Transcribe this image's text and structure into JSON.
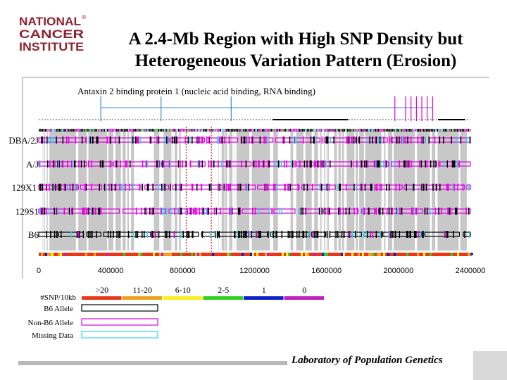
{
  "header": {
    "logo_lines": [
      "NATIONAL",
      "CANCER",
      "INSTITUTE"
    ],
    "logo_mark": "®",
    "title_line1": "A 2.4-Mb Region with High SNP Density but",
    "title_line2": "Heterogeneous Variation Pattern (Erosion)"
  },
  "gene_annotation": "Antaxin 2 binding protein 1 (nucleic acid binding, RNA binding)",
  "footer": {
    "lab": "Laboratory of Population Genetics"
  },
  "colors": {
    "gray_band": "#c8c8c8",
    "b6_allele": "#000000",
    "non_b6_allele": "#e000e0",
    "missing_data": "#33d6e6",
    "density": [
      "#e83818",
      "#f0a020",
      "#f8f020",
      "#30d020",
      "#1020c8",
      "#c020c0"
    ],
    "logo": "#8b2332"
  },
  "chart_data": {
    "type": "heatmap",
    "strains": [
      "DBA/2J",
      "A/J",
      "129X1",
      "129S1",
      "B6"
    ],
    "x_axis": {
      "min": 0,
      "max": 2400000,
      "ticks": [
        0,
        400000,
        800000,
        1200000,
        1600000,
        2000000,
        2400000
      ],
      "tick_labels": [
        "0",
        "400000",
        "800000",
        "1200000",
        "1600000",
        "2000000",
        "2400000"
      ]
    },
    "density_legend": {
      "title": "#SNP/10kb",
      "classes": [
        {
          "label": ">20",
          "color": "#e83818"
        },
        {
          "label": "11-20",
          "color": "#f0a020"
        },
        {
          "label": "6-10",
          "color": "#f8f020"
        },
        {
          "label": "2-5",
          "color": "#30d020"
        },
        {
          "label": "1",
          "color": "#1020c8"
        },
        {
          "label": "0",
          "color": "#c020c0"
        }
      ]
    },
    "allele_legend": [
      {
        "label": "B6 Allele",
        "color": "#000000"
      },
      {
        "label": "Non-B6 Allele",
        "color": "#e000e0"
      },
      {
        "label": "Missing Data",
        "color": "#33d6e6"
      }
    ],
    "gene_markers_bp": [
      345000,
      680000,
      1070000,
      1980000,
      2040000,
      2070000,
      2100000,
      2130000,
      2160000,
      2190000
    ],
    "gene_span_bp": [
      345000,
      2190000
    ],
    "reference_lines_bp": [
      820000,
      960000
    ],
    "gray_blocks_bp": [
      [
        20000,
        530000
      ],
      [
        640000,
        790000
      ],
      [
        1000000,
        1330000
      ],
      [
        1400000,
        2380000
      ]
    ]
  }
}
